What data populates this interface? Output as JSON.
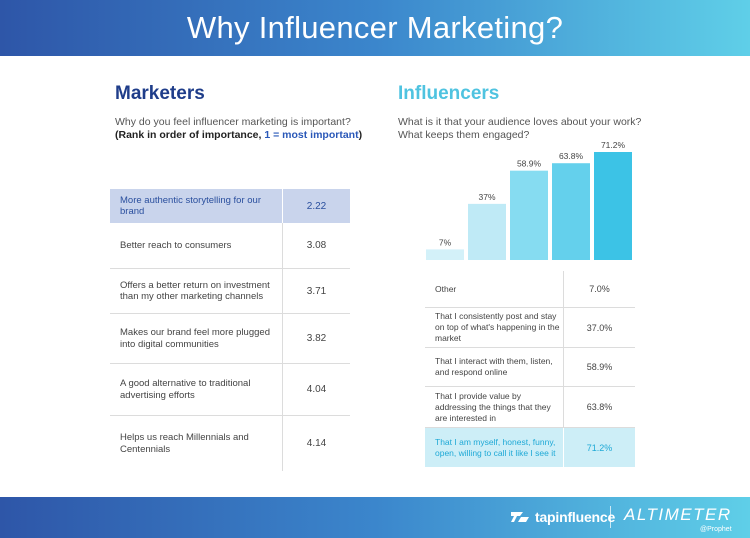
{
  "header": {
    "title": "Why Influencer Marketing?"
  },
  "marketers": {
    "title": "Marketers",
    "question": "Why do you feel influencer marketing is important?",
    "rank_prefix": "(Rank in order of importance, ",
    "rank_highlight": "1 = most important",
    "rank_suffix": ")",
    "rows": [
      {
        "label": "More authentic storytelling for our brand",
        "value": "2.22"
      },
      {
        "label": "Better reach to consumers",
        "value": "3.08"
      },
      {
        "label": "Offers a better return on investment than my other marketing channels",
        "value": "3.71"
      },
      {
        "label": "Makes our brand feel more plugged into digital communities",
        "value": "3.82"
      },
      {
        "label": "A good alternative to traditional advertising efforts",
        "value": "4.04"
      },
      {
        "label": "Helps us reach Millennials and Centennials",
        "value": "4.14"
      }
    ]
  },
  "influencers": {
    "title": "Influencers",
    "question_line1": "What is it that your audience loves about your work?",
    "question_line2": "What keeps them engaged?",
    "rows": [
      {
        "label": "Other",
        "value": "7.0%"
      },
      {
        "label": "That I consistently post and stay on top of what's happening in the market",
        "value": "37.0%"
      },
      {
        "label": "That I interact with them, listen, and respond online",
        "value": "58.9%"
      },
      {
        "label": "That I provide value by addressing the things that they are interested in",
        "value": "63.8%"
      },
      {
        "label": "That I am myself, honest, funny, open, willing to call it like I see it",
        "value": "71.2%"
      }
    ]
  },
  "chart_data": {
    "type": "bar",
    "title": "",
    "xlabel": "",
    "ylabel": "",
    "categories": [
      "Other",
      "That I consistently post and stay on top of what's happening in the market",
      "That I interact with them, listen, and respond online",
      "That I provide value by addressing the things that they are interested in",
      "That I am myself, honest, funny, open, willing to call it like I see it"
    ],
    "values": [
      7,
      37,
      58.9,
      63.8,
      71.2
    ],
    "data_labels": [
      "7%",
      "37%",
      "58.9%",
      "63.8%",
      "71.2%"
    ],
    "ylim": [
      0,
      71.2
    ],
    "grid": false,
    "colors": [
      "#d3f1f9",
      "#bfeaf6",
      "#86dcf1",
      "#64d0ec",
      "#3cc3e6"
    ]
  },
  "footer": {
    "logo1": "tapinfluence",
    "logo2": "ALTIMETER",
    "logo2_sub": "@Prophet"
  }
}
